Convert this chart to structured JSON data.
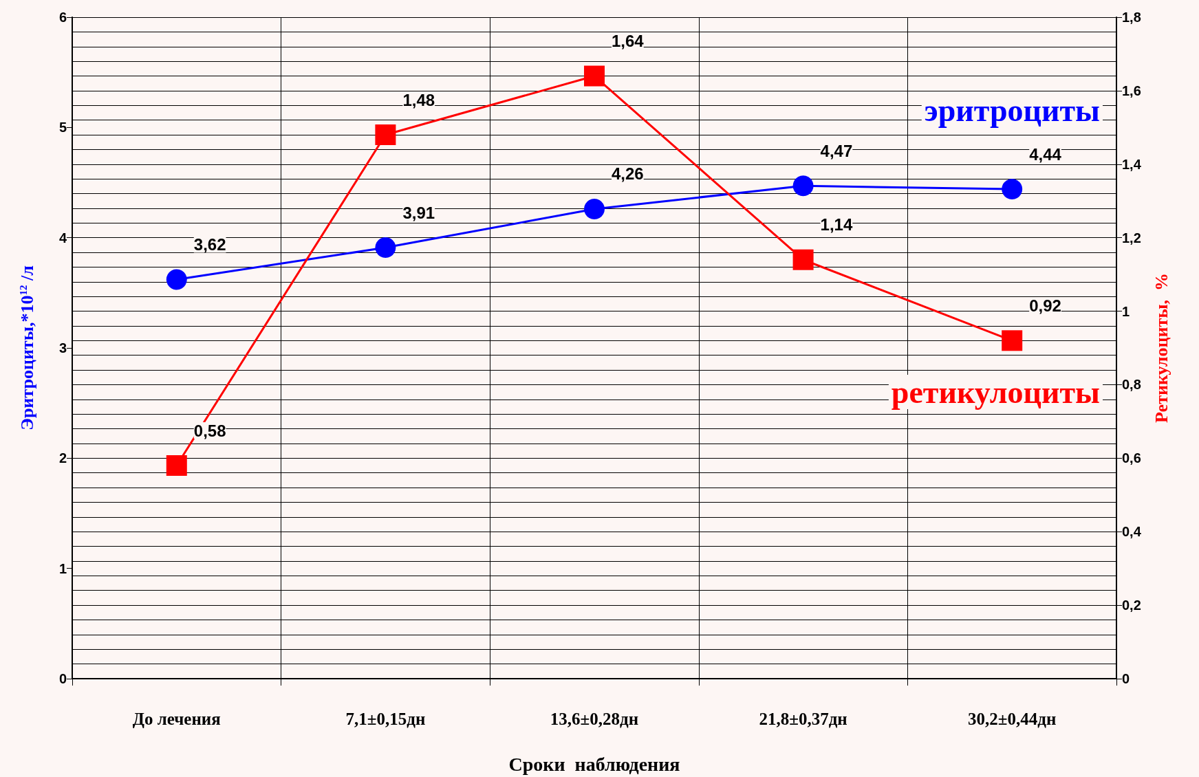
{
  "chart_data": {
    "type": "line",
    "xlabel": "Сроки  наблюдения",
    "ylabel": "Эритроциты,*10$^{12}$ /л",
    "y2label": "Ретикулоциты,  %",
    "categories": [
      "До лечения",
      "7,1±0,15дн",
      "13,6±0,28дн",
      "21,8±0,37дн",
      "30,2±0,44дн"
    ],
    "series": [
      {
        "name": "эритроциты",
        "color": "#0000ff",
        "marker": "circle",
        "values": [
          3.62,
          3.91,
          4.26,
          4.47,
          4.44
        ],
        "value_labels": [
          "3,62",
          "3,91",
          "4,26",
          "4,47",
          "4,44"
        ]
      },
      {
        "name": "ретикулоциты",
        "color": "#ff0000",
        "marker": "square",
        "axis": "y2",
        "values": [
          0.58,
          1.48,
          1.64,
          1.14,
          0.92
        ],
        "value_labels": [
          "0,58",
          "1,48",
          "1,64",
          "1,14",
          "0,92"
        ]
      }
    ],
    "ylim": [
      0,
      6
    ],
    "yticks": [
      0,
      1,
      2,
      3,
      4,
      5,
      6
    ],
    "y2lim": [
      0,
      1.8
    ],
    "y2ticks": [
      0,
      {
        "value": 0.2,
        "label": "0,2"
      },
      {
        "value": 0.4,
        "label": "0,4"
      },
      {
        "value": 0.6,
        "label": "0,6"
      },
      {
        "value": 0.8,
        "label": "0,8"
      },
      1,
      {
        "value": 1.2,
        "label": "1,2"
      },
      {
        "value": 1.4,
        "label": "1,4"
      },
      {
        "value": 1.6,
        "label": "1,6"
      },
      {
        "value": 1.8,
        "label": "1,8"
      }
    ],
    "grid": true
  }
}
